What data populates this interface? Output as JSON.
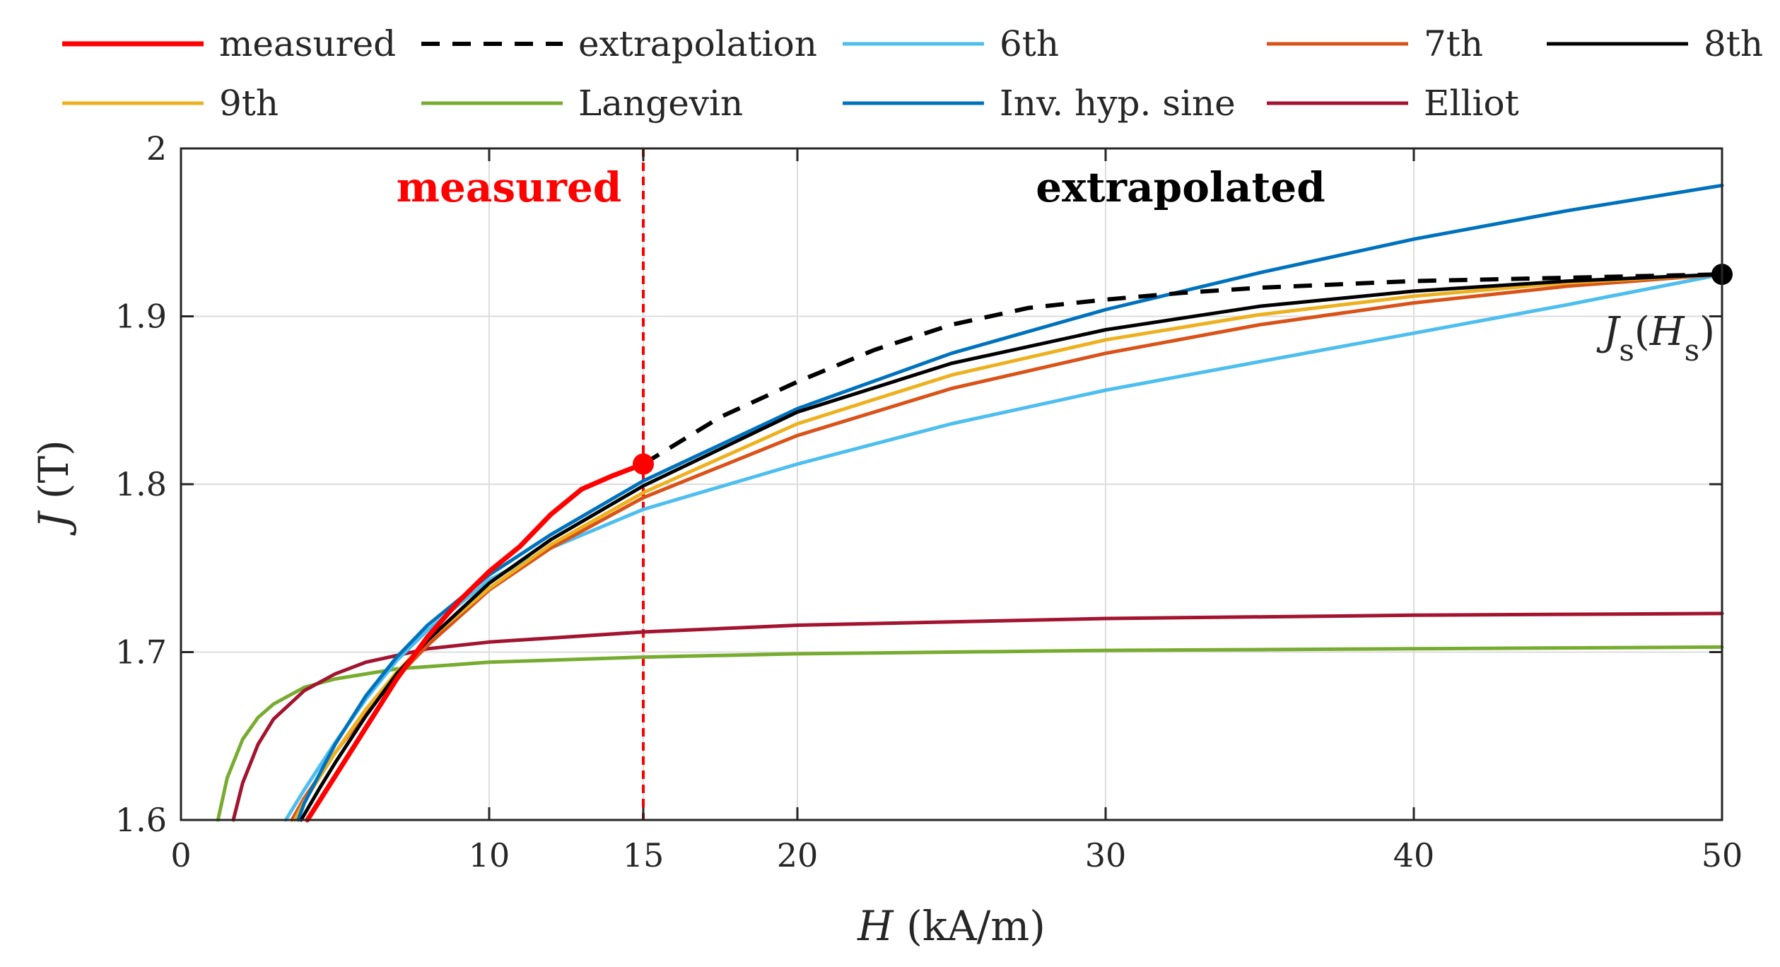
{
  "chart_data": {
    "type": "line",
    "xlabel_italic": "H",
    "xlabel_rest": " (kA/m)",
    "ylabel_italic": "J",
    "ylabel_rest": " (T)",
    "xlim": [
      0,
      50
    ],
    "ylim": [
      1.6,
      2.0
    ],
    "xticks": [
      0,
      10,
      15,
      20,
      30,
      40,
      50
    ],
    "yticks": [
      1.6,
      1.7,
      1.8,
      1.9,
      2.0
    ],
    "xtick_labels": [
      "0",
      "10",
      "15",
      "20",
      "30",
      "40",
      "50"
    ],
    "ytick_labels": [
      "1.6",
      "1.7",
      "1.8",
      "1.9",
      "2"
    ],
    "grid": true,
    "legend_position": "top",
    "region_labels": {
      "measured": "measured",
      "extrapolated": "extrapolated"
    },
    "divider_x": 15,
    "annotation": {
      "main": "J",
      "sub1": "s",
      "paren_open": "(",
      "main2": "H",
      "sub2": "s",
      "paren_close": ")"
    },
    "saturation_point": {
      "x": 50,
      "y": 1.925
    },
    "measured_end_point": {
      "x": 15,
      "y": 1.812
    },
    "series": [
      {
        "name": "measured",
        "color": "#ff0000",
        "style": "solid",
        "x": [
          4.1,
          5,
          6,
          7,
          8,
          9,
          10,
          11,
          12,
          13,
          14,
          15
        ],
        "y": [
          1.6,
          1.626,
          1.655,
          1.684,
          1.709,
          1.73,
          1.748,
          1.763,
          1.782,
          1.797,
          1.805,
          1.812
        ]
      },
      {
        "name": "extrapolation",
        "color": "#000000",
        "style": "dashed",
        "x": [
          15,
          17.5,
          20,
          22.5,
          25,
          27.5,
          30,
          32.5,
          35,
          40,
          45,
          50
        ],
        "y": [
          1.812,
          1.84,
          1.861,
          1.88,
          1.895,
          1.905,
          1.91,
          1.914,
          1.917,
          1.921,
          1.923,
          1.925
        ]
      },
      {
        "name": "6th",
        "color": "#4DBEEE",
        "style": "solid",
        "x": [
          3.4,
          4,
          5,
          6,
          7,
          8,
          10,
          12,
          15,
          20,
          25,
          30,
          35,
          40,
          45,
          50
        ],
        "y": [
          1.6,
          1.618,
          1.646,
          1.672,
          1.695,
          1.713,
          1.743,
          1.762,
          1.785,
          1.812,
          1.836,
          1.856,
          1.873,
          1.89,
          1.907,
          1.925
        ]
      },
      {
        "name": "7th",
        "color": "#D95319",
        "style": "solid",
        "x": [
          3.6,
          4,
          5,
          6,
          7,
          8,
          10,
          12,
          15,
          20,
          25,
          30,
          35,
          40,
          45,
          50
        ],
        "y": [
          1.6,
          1.613,
          1.64,
          1.664,
          1.685,
          1.704,
          1.737,
          1.762,
          1.792,
          1.829,
          1.857,
          1.878,
          1.895,
          1.908,
          1.918,
          1.925
        ]
      },
      {
        "name": "8th",
        "color": "#000000",
        "style": "solid",
        "x": [
          3.9,
          4.5,
          5,
          6,
          7,
          8,
          10,
          12,
          15,
          20,
          25,
          30,
          35,
          40,
          45,
          50
        ],
        "y": [
          1.6,
          1.619,
          1.634,
          1.662,
          1.687,
          1.707,
          1.741,
          1.767,
          1.799,
          1.843,
          1.872,
          1.892,
          1.906,
          1.915,
          1.921,
          1.925
        ]
      },
      {
        "name": "9th",
        "color": "#EDB120",
        "style": "solid",
        "x": [
          3.7,
          4,
          5,
          6,
          7,
          8,
          10,
          12,
          15,
          20,
          25,
          30,
          35,
          40,
          45,
          50
        ],
        "y": [
          1.6,
          1.611,
          1.64,
          1.666,
          1.688,
          1.707,
          1.738,
          1.764,
          1.795,
          1.836,
          1.865,
          1.886,
          1.901,
          1.912,
          1.92,
          1.925
        ]
      },
      {
        "name": "Langevin",
        "color": "#77AC30",
        "style": "solid",
        "x": [
          1.2,
          1.5,
          2,
          2.5,
          3,
          4,
          5,
          7,
          10,
          15,
          20,
          30,
          40,
          50
        ],
        "y": [
          1.6,
          1.625,
          1.648,
          1.661,
          1.669,
          1.679,
          1.684,
          1.69,
          1.694,
          1.697,
          1.699,
          1.701,
          1.702,
          1.703
        ]
      },
      {
        "name": "Inv. hyp. sine",
        "color": "#0072BD",
        "style": "solid",
        "x": [
          3.8,
          4,
          5,
          6,
          7,
          8,
          10,
          12,
          15,
          20,
          25,
          30,
          35,
          40,
          45,
          50
        ],
        "y": [
          1.6,
          1.61,
          1.645,
          1.674,
          1.697,
          1.716,
          1.746,
          1.77,
          1.802,
          1.845,
          1.878,
          1.904,
          1.926,
          1.946,
          1.963,
          1.978
        ]
      },
      {
        "name": "Elliot",
        "color": "#A2142F",
        "style": "solid",
        "x": [
          1.7,
          2,
          2.5,
          3,
          4,
          5,
          6,
          8,
          10,
          15,
          20,
          30,
          40,
          50
        ],
        "y": [
          1.6,
          1.622,
          1.645,
          1.66,
          1.677,
          1.687,
          1.694,
          1.702,
          1.706,
          1.712,
          1.716,
          1.72,
          1.722,
          1.723
        ]
      }
    ],
    "draw_order": [
      "Langevin",
      "Elliot",
      "6th",
      "7th",
      "9th",
      "Inv. hyp. sine",
      "8th",
      "extrapolation",
      "measured"
    ]
  },
  "legend": {
    "rows": [
      [
        "measured",
        "extrapolation",
        "6th",
        "7th",
        "8th"
      ],
      [
        "9th",
        "Langevin",
        "Inv. hyp. sine",
        "Elliot"
      ]
    ]
  },
  "colors": {
    "axis": "#262626",
    "grid": "#dcdcdc",
    "divider": "#ff0000"
  }
}
